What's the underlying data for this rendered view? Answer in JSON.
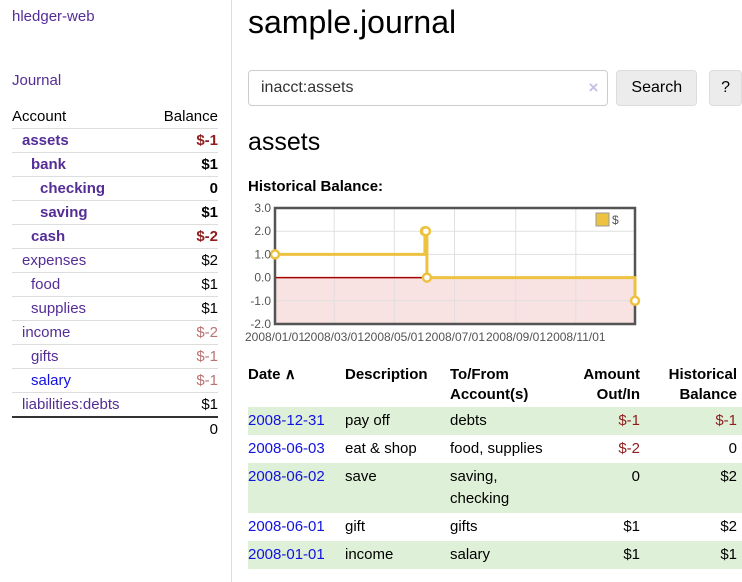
{
  "colors": {
    "link_purple": "#542d96",
    "link_blue": "#1212e0",
    "negative_strong": "#8f1d1d",
    "negative_soft": "#bb7272",
    "row_stripe_green": "#dff0d8",
    "chart_line_gold": "#edc240",
    "chart_negative_region": "#f9e2e2",
    "chart_zero_line": "#a40000",
    "chart_border": "#545454"
  },
  "sidebar": {
    "brand": "hledger-web",
    "journal_link": "Journal",
    "accounts_header": {
      "account": "Account",
      "balance": "Balance"
    },
    "accounts": [
      {
        "name": "assets",
        "balance": "$-1",
        "level": 0,
        "bold": true
      },
      {
        "name": "bank",
        "balance": "$1",
        "level": 1,
        "bold": true
      },
      {
        "name": "checking",
        "balance": "0",
        "level": 2,
        "bold": true
      },
      {
        "name": "saving",
        "balance": "$1",
        "level": 2,
        "bold": true
      },
      {
        "name": "cash",
        "balance": "$-2",
        "level": 1,
        "bold": true
      },
      {
        "name": "expenses",
        "balance": "$2",
        "level": 0,
        "bold": false
      },
      {
        "name": "food",
        "balance": "$1",
        "level": 1,
        "bold": false
      },
      {
        "name": "supplies",
        "balance": "$1",
        "level": 1,
        "bold": false
      },
      {
        "name": "income",
        "balance": "$-2",
        "level": 0,
        "bold": false
      },
      {
        "name": "gifts",
        "balance": "$-1",
        "level": 1,
        "bold": false
      },
      {
        "name": "salary",
        "balance": "$-1",
        "level": 1,
        "bold": false
      },
      {
        "name": "liabilities:debts",
        "balance": "$1",
        "level": 0,
        "bold": false
      }
    ],
    "total": "0"
  },
  "header": {
    "title": "sample.journal"
  },
  "search": {
    "value": "inacct:assets",
    "clear_icon": "×",
    "button_label": "Search",
    "help_label": "?"
  },
  "account_page": {
    "title": "assets",
    "chart_label": "Historical Balance:"
  },
  "chart_data": {
    "type": "line",
    "step": true,
    "title": "Historical Balance",
    "x_range": [
      "2008-01-01",
      "2008-12-31"
    ],
    "ylim": [
      -2,
      3
    ],
    "yticks": [
      "3.0",
      "2.0",
      "1.0",
      "0.0",
      "-1.0",
      "-2.0"
    ],
    "xticks": [
      "2008/01/01",
      "2008/03/01",
      "2008/05/01",
      "2008/07/01",
      "2008/09/01",
      "2008/11/01"
    ],
    "series": [
      {
        "name": "$",
        "color": "#edc240",
        "points": [
          [
            "2008-01-01",
            1
          ],
          [
            "2008-06-01",
            2
          ],
          [
            "2008-06-02",
            2
          ],
          [
            "2008-06-03",
            0
          ],
          [
            "2008-12-31",
            -1
          ]
        ]
      }
    ],
    "legend_position": "top-right",
    "grid": true
  },
  "register": {
    "columns": {
      "date": "Date",
      "sort_icon": "∧",
      "description": "Description",
      "accounts": "To/From Account(s)",
      "amount": "Amount Out/In",
      "balance": "Historical Balance"
    },
    "rows": [
      {
        "date": "2008-12-31",
        "description": "pay off",
        "accounts": "debts",
        "amount": "$-1",
        "balance": "$-1"
      },
      {
        "date": "2008-06-03",
        "description": "eat & shop",
        "accounts": "food, supplies",
        "amount": "$-2",
        "balance": "0"
      },
      {
        "date": "2008-06-02",
        "description": "save",
        "accounts": "saving, checking",
        "amount": "0",
        "balance": "$2"
      },
      {
        "date": "2008-06-01",
        "description": "gift",
        "accounts": "gifts",
        "amount": "$1",
        "balance": "$2"
      },
      {
        "date": "2008-01-01",
        "description": "income",
        "accounts": "salary",
        "amount": "$1",
        "balance": "$1"
      }
    ]
  }
}
